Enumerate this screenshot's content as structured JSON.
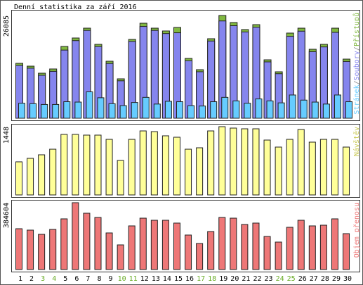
{
  "chart_data": {
    "type": "bar",
    "title": "Denní statistika za září 2016",
    "categories": [
      "1",
      "2",
      "3",
      "4",
      "5",
      "6",
      "7",
      "8",
      "9",
      "10",
      "11",
      "12",
      "13",
      "14",
      "15",
      "16",
      "17",
      "18",
      "19",
      "20",
      "21",
      "22",
      "23",
      "24",
      "25",
      "26",
      "27",
      "28",
      "29",
      "30"
    ],
    "category_colors": [
      "#000000",
      "#000000",
      "#66aa22",
      "#66aa22",
      "#000000",
      "#000000",
      "#000000",
      "#000000",
      "#000000",
      "#66aa22",
      "#66aa22",
      "#000000",
      "#000000",
      "#000000",
      "#000000",
      "#000000",
      "#66aa22",
      "#66aa22",
      "#000000",
      "#000000",
      "#000000",
      "#000000",
      "#000000",
      "#66aa22",
      "#66aa22",
      "#000000",
      "#000000",
      "#000000",
      "#000000",
      "#000000"
    ],
    "legend_separator": "/",
    "panels": [
      {
        "ylim": [
          0,
          26085
        ],
        "yticks": [
          26085
        ],
        "series": [
          {
            "name": "Přístupů",
            "color": "#80b840",
            "values": [
              13937,
              13222,
              11434,
              12507,
              18224,
              20368,
              22869,
              18760,
              14472,
              10005,
              20011,
              24120,
              22869,
              22155,
              23048,
              15187,
              12328,
              20189,
              26085,
              24299,
              22512,
              23763,
              14829,
              11792,
              21619,
              22869,
              17509,
              18760,
              22869,
              15008
            ]
          },
          {
            "name": "Soubory",
            "color": "#8585ee",
            "values": [
              13400,
              12700,
              10900,
              11900,
              17300,
              19700,
              22300,
              18200,
              13900,
              9500,
              19500,
              23300,
              22300,
              21500,
              21700,
              14600,
              11800,
              19600,
              24700,
              23500,
              21900,
              23100,
              14300,
              11300,
              20800,
              22100,
              16900,
              18100,
              21800,
              14400
            ]
          },
          {
            "name": "Stránek",
            "color": "#66ccff",
            "values": [
              3800,
              3700,
              3500,
              3500,
              4200,
              4100,
              6700,
              5200,
              3700,
              3200,
              4000,
              5300,
              3600,
              4300,
              4200,
              3200,
              3100,
              4200,
              5300,
              4400,
              3800,
              4900,
              4400,
              3900,
              5900,
              4600,
              4100,
              3600,
              5900,
              4200
            ]
          }
        ]
      },
      {
        "ylim": [
          0,
          1448
        ],
        "yticks": [
          1448
        ],
        "series": [
          {
            "name": "Návštěv",
            "color": "#ffff99",
            "label_color": "#c8c850",
            "values": [
              702,
              776,
              851,
              970,
              1284,
              1284,
              1269,
              1269,
              1179,
              731,
              1179,
              1358,
              1343,
              1254,
              1224,
              970,
              1000,
              1358,
              1448,
              1418,
              1403,
              1403,
              1164,
              1015,
              1179,
              1388,
              1120,
              1179,
              1179,
              1015
            ]
          }
        ]
      },
      {
        "ylim": [
          0,
          384604
        ],
        "yticks": [
          384604
        ],
        "series": [
          {
            "name": "Objem přenosu",
            "color": "#ee7777",
            "label_color": "#ee7777",
            "values": [
              234813,
              226716,
              202425,
              230765,
              291492,
              384604,
              323878,
              299589,
              210522,
              141697,
              251007,
              295540,
              283395,
              283395,
              267201,
              198377,
              149794,
              218619,
              299589,
              295540,
              259104,
              267201,
              190280,
              157891,
              242910,
              283395,
              251007,
              255055,
              291492,
              206473
            ]
          }
        ]
      }
    ]
  }
}
